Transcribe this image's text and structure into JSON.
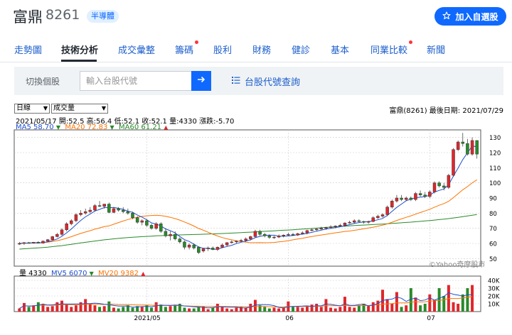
{
  "header": {
    "stock_name": "富鼎",
    "stock_code": "8261",
    "industry_badge": "半導體",
    "watch_button": "加入自選股",
    "watch_icon": "star-icon"
  },
  "tabs": [
    {
      "label": "走勢圖",
      "dot": false
    },
    {
      "label": "技術分析",
      "dot": false,
      "active": true
    },
    {
      "label": "成交彙整",
      "dot": false
    },
    {
      "label": "籌碼",
      "dot": true
    },
    {
      "label": "股利",
      "dot": false
    },
    {
      "label": "財務",
      "dot": false
    },
    {
      "label": "健診",
      "dot": false
    },
    {
      "label": "基本",
      "dot": false
    },
    {
      "label": "同業比較",
      "dot": true
    },
    {
      "label": "新聞",
      "dot": false
    }
  ],
  "search": {
    "label": "切換個股",
    "placeholder": "輸入台股代號",
    "go_icon": "arrow-right-icon",
    "lookup_label": "台股代號查詢",
    "lookup_icon": "list-icon"
  },
  "controls": {
    "period": "日線",
    "indicator": "成交量"
  },
  "info": {
    "right": "富鼎(8261)  最後日期: 2021/07/29",
    "ohlc": "2021/05/17  開:52.5  高:56.4  低:52.1  收:52.1  量:4330  漲跌:-5.70",
    "ma5": "MA5 58.70",
    "ma20": "MA20 72.83",
    "ma60": "MA60 61.21",
    "vol": "量 4330",
    "mv5": "MV5 6070",
    "mv20": "MV20 9382",
    "watermark": "©Yahoo奇摩股市"
  },
  "colors": {
    "up": "#e0262b",
    "down": "#2a8a2a",
    "ma5": "#1f4fd1",
    "ma20": "#ff7300",
    "ma60": "#2a8a2a",
    "accent": "#0f69ff"
  },
  "chart_data": {
    "type": "candlestick",
    "x_labels": [
      "2021/05",
      "06",
      "07"
    ],
    "price_ticks": [
      50,
      60,
      70,
      80,
      90,
      100,
      110,
      120,
      130
    ],
    "volume_ticks": [
      "10K",
      "20K",
      "30K",
      "40K"
    ],
    "ylim": [
      45,
      135
    ],
    "candles": [
      [
        60,
        61,
        59,
        60
      ],
      [
        60,
        61,
        59,
        60.5
      ],
      [
        60.5,
        61,
        60,
        60.3
      ],
      [
        60.3,
        61,
        59.8,
        60.8
      ],
      [
        60.8,
        61.5,
        60,
        60.2
      ],
      [
        60.2,
        62,
        60,
        61.5
      ],
      [
        61.5,
        63,
        61,
        62.5
      ],
      [
        62.5,
        65,
        62,
        64.5
      ],
      [
        64.5,
        67,
        64,
        66
      ],
      [
        66,
        70,
        65,
        69
      ],
      [
        69,
        74,
        68,
        73
      ],
      [
        73,
        76,
        72,
        75
      ],
      [
        75,
        80,
        74,
        79
      ],
      [
        79,
        82,
        78,
        80
      ],
      [
        80,
        83,
        79,
        81
      ],
      [
        81,
        84,
        80,
        82
      ],
      [
        82,
        86,
        81,
        85
      ],
      [
        85,
        88,
        84,
        84.5
      ],
      [
        84.5,
        86,
        83,
        86
      ],
      [
        86,
        87,
        80,
        80.5
      ],
      [
        80.5,
        84,
        80,
        83
      ],
      [
        83,
        84,
        81,
        82
      ],
      [
        82,
        84,
        80,
        81
      ],
      [
        81,
        83,
        79,
        80
      ],
      [
        80,
        81,
        76,
        77
      ],
      [
        77,
        78,
        73,
        74
      ],
      [
        74,
        76,
        72,
        75
      ],
      [
        75,
        76,
        71,
        72
      ],
      [
        72,
        73,
        69,
        70
      ],
      [
        70,
        74,
        69,
        73
      ],
      [
        73,
        74,
        67,
        68
      ],
      [
        68,
        70,
        64,
        65
      ],
      [
        65,
        68,
        62,
        66
      ],
      [
        66,
        68,
        62,
        63
      ],
      [
        63,
        64,
        60,
        61
      ],
      [
        61,
        62,
        56,
        57.5
      ],
      [
        57.5,
        60,
        56,
        59
      ],
      [
        59,
        60,
        56,
        57
      ],
      [
        57.5,
        58,
        53,
        54
      ],
      [
        55,
        57,
        54,
        56.5
      ],
      [
        56.5,
        58,
        55,
        57
      ],
      [
        57,
        58,
        55.5,
        56
      ],
      [
        56,
        58,
        55,
        57.5
      ],
      [
        57.5,
        60,
        57,
        59
      ],
      [
        59,
        61,
        58,
        60.5
      ],
      [
        60.5,
        62,
        60,
        61
      ],
      [
        61,
        62,
        60,
        61.5
      ],
      [
        61.5,
        63,
        61,
        62
      ],
      [
        62,
        64,
        61,
        63
      ],
      [
        63,
        65,
        62,
        64.5
      ],
      [
        64.5,
        69,
        64,
        68
      ],
      [
        68,
        69,
        65,
        66
      ],
      [
        66,
        67,
        64,
        65
      ],
      [
        65,
        66,
        63,
        64
      ],
      [
        64,
        65,
        63,
        64.2
      ],
      [
        64.2,
        66,
        63.5,
        65
      ],
      [
        65,
        66,
        64,
        65.5
      ],
      [
        65.5,
        67,
        65,
        66
      ],
      [
        66,
        67,
        65,
        65.5
      ],
      [
        65.5,
        67,
        65,
        66.5
      ],
      [
        66.5,
        68,
        66,
        67
      ],
      [
        67,
        69,
        66,
        68.5
      ],
      [
        68.5,
        70,
        68,
        69
      ],
      [
        69,
        70,
        68,
        69.5
      ],
      [
        69.5,
        71,
        69,
        70
      ],
      [
        70,
        71,
        69,
        70.5
      ],
      [
        70.5,
        72,
        70,
        71
      ],
      [
        71,
        72,
        70,
        71.5
      ],
      [
        71.5,
        73,
        71,
        72
      ],
      [
        72,
        74,
        71,
        73.5
      ],
      [
        73.5,
        75,
        73,
        74
      ],
      [
        74,
        76,
        73,
        75
      ],
      [
        75,
        76,
        74,
        74.5
      ],
      [
        74.5,
        75,
        73,
        74
      ],
      [
        74,
        75,
        73,
        74.5
      ],
      [
        74.5,
        78,
        74,
        77
      ],
      [
        77,
        79,
        76,
        78
      ],
      [
        78,
        80,
        77,
        79
      ],
      [
        79,
        85,
        78,
        84
      ],
      [
        84,
        89,
        83,
        88
      ],
      [
        88,
        92,
        87,
        90
      ],
      [
        90,
        92,
        88,
        89
      ],
      [
        89,
        91,
        88,
        90
      ],
      [
        90,
        91,
        88,
        89
      ],
      [
        89,
        94,
        88,
        93
      ],
      [
        93,
        95,
        91,
        92
      ],
      [
        92,
        94,
        90,
        91
      ],
      [
        91,
        95,
        90,
        94
      ],
      [
        94,
        101,
        93,
        100
      ],
      [
        100,
        101,
        97,
        98
      ],
      [
        98,
        100,
        95,
        97
      ],
      [
        97,
        106,
        96,
        105
      ],
      [
        105,
        123,
        104,
        122
      ],
      [
        122,
        128,
        121,
        127
      ],
      [
        127,
        133,
        124,
        126
      ],
      [
        126,
        129,
        118,
        119
      ],
      [
        119,
        130,
        118,
        128
      ],
      [
        128,
        128,
        116,
        119
      ]
    ],
    "volumes_k": [
      4,
      11,
      6,
      8,
      12,
      10,
      6,
      7,
      12,
      14,
      9,
      6,
      8,
      12,
      16,
      10,
      8,
      6,
      7,
      13,
      5,
      4,
      6,
      8,
      5,
      7,
      6,
      8,
      5,
      12,
      9,
      6,
      7,
      8,
      10,
      5,
      4,
      4,
      6,
      7,
      3,
      5,
      10,
      6,
      4,
      3,
      5,
      6,
      5,
      10,
      15,
      8,
      6,
      4,
      5,
      4,
      5,
      13,
      6,
      6,
      5,
      7,
      9,
      10,
      6,
      16,
      5,
      4,
      6,
      19,
      6,
      5,
      8,
      10,
      7,
      12,
      14,
      28,
      16,
      10,
      25,
      6,
      8,
      30,
      18,
      8,
      10,
      22,
      15,
      30,
      20,
      34,
      12,
      10,
      22,
      30,
      34
    ]
  }
}
